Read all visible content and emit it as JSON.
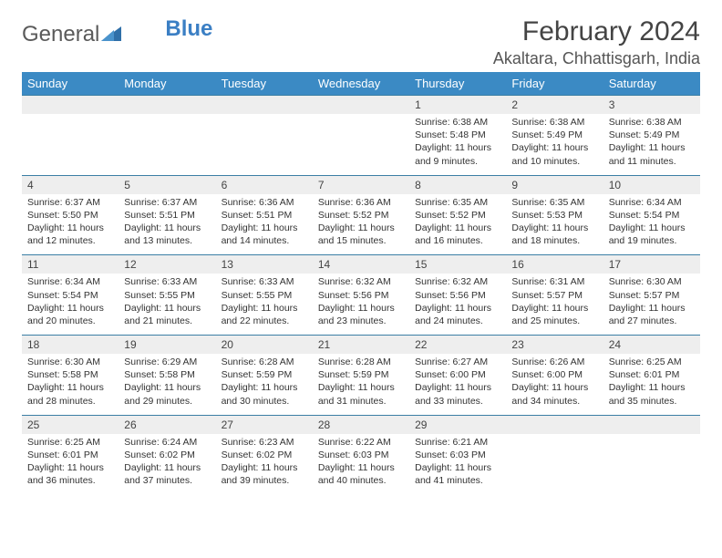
{
  "brand": {
    "part1": "General",
    "part2": "Blue"
  },
  "title": "February 2024",
  "location": "Akaltara, Chhattisgarh, India",
  "colors": {
    "header_bg": "#3b8ac4",
    "header_text": "#ffffff",
    "daynum_bg": "#eeeeee",
    "row_border": "#3b7fa5",
    "page_bg": "#ffffff",
    "text": "#333333",
    "brand_gray": "#5a5a5a",
    "brand_blue": "#3b7fc4"
  },
  "weekdays": [
    "Sunday",
    "Monday",
    "Tuesday",
    "Wednesday",
    "Thursday",
    "Friday",
    "Saturday"
  ],
  "weeks": [
    [
      null,
      null,
      null,
      null,
      {
        "n": "1",
        "sr": "6:38 AM",
        "ss": "5:48 PM",
        "dl": "11 hours and 9 minutes."
      },
      {
        "n": "2",
        "sr": "6:38 AM",
        "ss": "5:49 PM",
        "dl": "11 hours and 10 minutes."
      },
      {
        "n": "3",
        "sr": "6:38 AM",
        "ss": "5:49 PM",
        "dl": "11 hours and 11 minutes."
      }
    ],
    [
      {
        "n": "4",
        "sr": "6:37 AM",
        "ss": "5:50 PM",
        "dl": "11 hours and 12 minutes."
      },
      {
        "n": "5",
        "sr": "6:37 AM",
        "ss": "5:51 PM",
        "dl": "11 hours and 13 minutes."
      },
      {
        "n": "6",
        "sr": "6:36 AM",
        "ss": "5:51 PM",
        "dl": "11 hours and 14 minutes."
      },
      {
        "n": "7",
        "sr": "6:36 AM",
        "ss": "5:52 PM",
        "dl": "11 hours and 15 minutes."
      },
      {
        "n": "8",
        "sr": "6:35 AM",
        "ss": "5:52 PM",
        "dl": "11 hours and 16 minutes."
      },
      {
        "n": "9",
        "sr": "6:35 AM",
        "ss": "5:53 PM",
        "dl": "11 hours and 18 minutes."
      },
      {
        "n": "10",
        "sr": "6:34 AM",
        "ss": "5:54 PM",
        "dl": "11 hours and 19 minutes."
      }
    ],
    [
      {
        "n": "11",
        "sr": "6:34 AM",
        "ss": "5:54 PM",
        "dl": "11 hours and 20 minutes."
      },
      {
        "n": "12",
        "sr": "6:33 AM",
        "ss": "5:55 PM",
        "dl": "11 hours and 21 minutes."
      },
      {
        "n": "13",
        "sr": "6:33 AM",
        "ss": "5:55 PM",
        "dl": "11 hours and 22 minutes."
      },
      {
        "n": "14",
        "sr": "6:32 AM",
        "ss": "5:56 PM",
        "dl": "11 hours and 23 minutes."
      },
      {
        "n": "15",
        "sr": "6:32 AM",
        "ss": "5:56 PM",
        "dl": "11 hours and 24 minutes."
      },
      {
        "n": "16",
        "sr": "6:31 AM",
        "ss": "5:57 PM",
        "dl": "11 hours and 25 minutes."
      },
      {
        "n": "17",
        "sr": "6:30 AM",
        "ss": "5:57 PM",
        "dl": "11 hours and 27 minutes."
      }
    ],
    [
      {
        "n": "18",
        "sr": "6:30 AM",
        "ss": "5:58 PM",
        "dl": "11 hours and 28 minutes."
      },
      {
        "n": "19",
        "sr": "6:29 AM",
        "ss": "5:58 PM",
        "dl": "11 hours and 29 minutes."
      },
      {
        "n": "20",
        "sr": "6:28 AM",
        "ss": "5:59 PM",
        "dl": "11 hours and 30 minutes."
      },
      {
        "n": "21",
        "sr": "6:28 AM",
        "ss": "5:59 PM",
        "dl": "11 hours and 31 minutes."
      },
      {
        "n": "22",
        "sr": "6:27 AM",
        "ss": "6:00 PM",
        "dl": "11 hours and 33 minutes."
      },
      {
        "n": "23",
        "sr": "6:26 AM",
        "ss": "6:00 PM",
        "dl": "11 hours and 34 minutes."
      },
      {
        "n": "24",
        "sr": "6:25 AM",
        "ss": "6:01 PM",
        "dl": "11 hours and 35 minutes."
      }
    ],
    [
      {
        "n": "25",
        "sr": "6:25 AM",
        "ss": "6:01 PM",
        "dl": "11 hours and 36 minutes."
      },
      {
        "n": "26",
        "sr": "6:24 AM",
        "ss": "6:02 PM",
        "dl": "11 hours and 37 minutes."
      },
      {
        "n": "27",
        "sr": "6:23 AM",
        "ss": "6:02 PM",
        "dl": "11 hours and 39 minutes."
      },
      {
        "n": "28",
        "sr": "6:22 AM",
        "ss": "6:03 PM",
        "dl": "11 hours and 40 minutes."
      },
      {
        "n": "29",
        "sr": "6:21 AM",
        "ss": "6:03 PM",
        "dl": "11 hours and 41 minutes."
      },
      null,
      null
    ]
  ],
  "labels": {
    "sunrise": "Sunrise:",
    "sunset": "Sunset:",
    "daylight": "Daylight:"
  }
}
